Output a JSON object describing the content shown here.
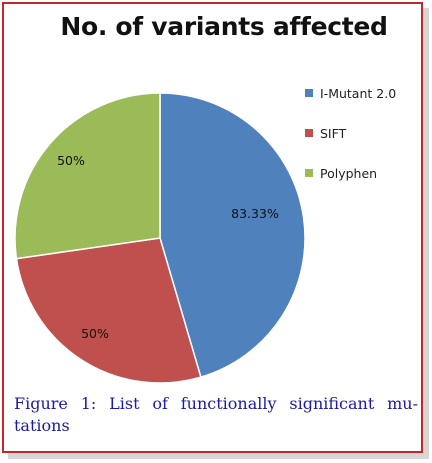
{
  "figure": {
    "caption": "Figure 1: List of functionally significant mu- tations"
  },
  "chart_data": {
    "type": "pie",
    "title": "No. of variants affected",
    "legend_position": "right",
    "slices": [
      {
        "label": "I-Mutant 2.0",
        "value": 83.33,
        "display": "83.33%",
        "color": "#4f81bd"
      },
      {
        "label": "SIFT",
        "value": 50,
        "display": "50%",
        "color": "#c0504d"
      },
      {
        "label": "Polyphen",
        "value": 50,
        "display": "50%",
        "color": "#9bbb59"
      }
    ]
  }
}
